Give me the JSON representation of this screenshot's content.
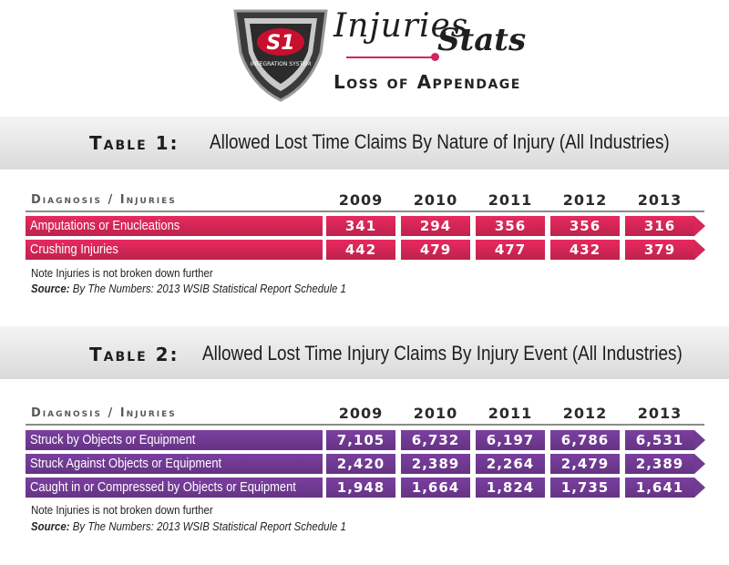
{
  "header": {
    "logo_text": "S1",
    "logo_subtext": "INTEGRATION SYSTEM",
    "title_script": "Injuries",
    "title_bold": "Stats",
    "subtitle": "Loss of Appendage",
    "accent_color": "#d6245a"
  },
  "chart_data": [
    {
      "type": "table",
      "label": "Table 1:",
      "title": "Allowed Lost Time Claims By Nature of Injury (All Industries)",
      "row_header": "Diagnosis / Injuries",
      "columns": [
        "2009",
        "2010",
        "2011",
        "2012",
        "2013"
      ],
      "color": "#e8295e",
      "rows": [
        {
          "name": "Amputations or Enucleations",
          "values": [
            "341",
            "294",
            "356",
            "356",
            "316"
          ]
        },
        {
          "name": "Crushing Injuries",
          "values": [
            "442",
            "479",
            "477",
            "432",
            "379"
          ]
        }
      ],
      "note": "Note Injuries is not broken down further",
      "source_label": "Source:",
      "source_text": "By The Numbers: 2013 WSIB Statistical Report Schedule 1"
    },
    {
      "type": "table",
      "label": "Table 2:",
      "title": "Allowed Lost Time Injury Claims By Injury Event (All Industries)",
      "row_header": "Diagnosis / Injuries",
      "columns": [
        "2009",
        "2010",
        "2011",
        "2012",
        "2013"
      ],
      "color": "#7b3fa0",
      "rows": [
        {
          "name": "Struck by Objects or Equipment",
          "values": [
            "7,105",
            "6,732",
            "6,197",
            "6,786",
            "6,531"
          ]
        },
        {
          "name": "Struck Against Objects or Equipment",
          "values": [
            "2,420",
            "2,389",
            "2,264",
            "2,479",
            "2,389"
          ]
        },
        {
          "name": "Caught in or Compressed by Objects or Equipment",
          "values": [
            "1,948",
            "1,664",
            "1,824",
            "1,735",
            "1,641"
          ]
        }
      ],
      "note": "Note Injuries is not broken down further",
      "source_label": "Source:",
      "source_text": "By The Numbers: 2013 WSIB Statistical Report Schedule 1"
    }
  ]
}
